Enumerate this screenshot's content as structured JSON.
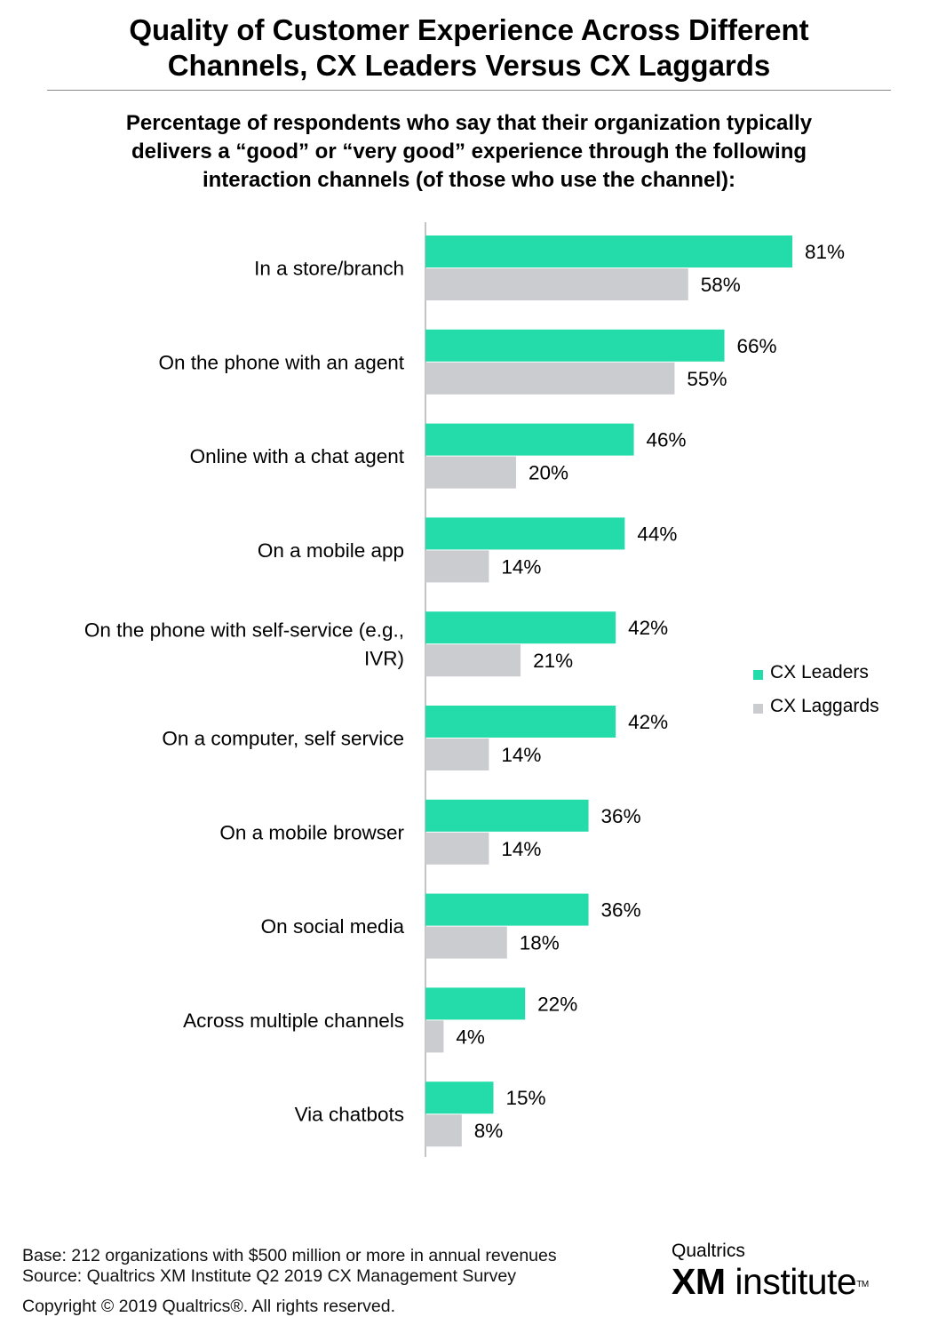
{
  "header": {
    "title_line1": "Quality of Customer Experience Across Different",
    "title_line2": "Channels, CX Leaders Versus CX Laggards",
    "subtitle_line1": "Percentage of respondents who say that their organization typically",
    "subtitle_line2": "delivers a “good” or “very good” experience through the following",
    "subtitle_line3": "interaction channels (of those who use the channel):"
  },
  "chart_data": {
    "type": "bar",
    "orientation": "horizontal",
    "categories": [
      [
        "In a store/branch"
      ],
      [
        "On the phone with an agent"
      ],
      [
        "Online with a chat agent"
      ],
      [
        "On a mobile app"
      ],
      [
        "On the phone with self-service (e.g.,",
        "IVR)"
      ],
      [
        "On a computer, self service"
      ],
      [
        "On a mobile browser"
      ],
      [
        "On social media"
      ],
      [
        "Across multiple channels"
      ],
      [
        "Via chatbots"
      ]
    ],
    "series": [
      {
        "name": "CX Leaders",
        "color": "#23dcaa",
        "values": [
          81,
          66,
          46,
          44,
          42,
          42,
          36,
          36,
          22,
          15
        ]
      },
      {
        "name": "CX Laggards",
        "color": "#cacccf",
        "values": [
          58,
          55,
          20,
          14,
          21,
          14,
          14,
          18,
          4,
          8
        ]
      }
    ],
    "value_suffix": "%",
    "xlim": [
      0,
      100
    ],
    "grid": false,
    "legend_position": "right"
  },
  "footer": {
    "base": "Base: 212 organizations with $500 million or more in annual revenues",
    "source": "Source: Qualtrics XM Institute Q2 2019 CX Management Survey",
    "copyright": "Copyright © 2019 Qualtrics®.  All rights reserved."
  },
  "logo": {
    "brand": "Qualtrics",
    "xm": "XM",
    "institute": "institute",
    "tm": "TM"
  }
}
